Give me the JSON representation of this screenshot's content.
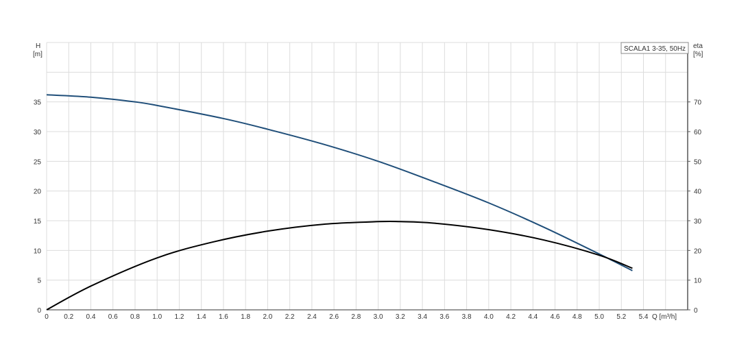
{
  "chart_data": {
    "type": "line",
    "title": "SCALA1 3-35, 50Hz",
    "xlabel": "Q [m³/h]",
    "ylabel_left": [
      "H",
      "[m]"
    ],
    "ylabel_right": [
      "eta",
      "[%]"
    ],
    "xlim": [
      0,
      5.8
    ],
    "ylim_left": [
      0,
      45
    ],
    "ylim_right": [
      0,
      90
    ],
    "grid": true,
    "x_ticks": [
      "0",
      "0.2",
      "0.4",
      "0.6",
      "0.8",
      "1.0",
      "1.2",
      "1.4",
      "1.6",
      "1.8",
      "2.0",
      "2.2",
      "2.4",
      "2.6",
      "2.8",
      "3.0",
      "3.2",
      "3.4",
      "3.6",
      "3.8",
      "4.0",
      "4.2",
      "4.4",
      "4.6",
      "4.8",
      "5.0",
      "5.2",
      "5.4"
    ],
    "y_ticks_left": [
      "0",
      "5",
      "10",
      "15",
      "20",
      "25",
      "30",
      "35"
    ],
    "y_ticks_right": [
      "0",
      "10",
      "20",
      "30",
      "40",
      "50",
      "60",
      "70"
    ],
    "series": [
      {
        "axis": "left",
        "color": "#1f4e79",
        "x": [
          0,
          0.4,
          0.8,
          1.0,
          1.6,
          2.0,
          2.5,
          3.0,
          3.5,
          4.0,
          4.5,
          5.0,
          5.3
        ],
        "values": [
          36.2,
          35.8,
          35.0,
          34.4,
          32.2,
          30.4,
          27.9,
          25.0,
          21.6,
          18.0,
          13.9,
          9.4,
          6.6
        ]
      },
      {
        "axis": "right",
        "color": "#000000",
        "x": [
          0,
          0.4,
          1.0,
          1.5,
          2.0,
          2.5,
          3.0,
          3.2,
          3.5,
          4.0,
          4.5,
          5.0,
          5.3
        ],
        "values": [
          0,
          8.0,
          17.5,
          22.8,
          26.5,
          28.8,
          29.7,
          29.7,
          29.2,
          27.0,
          23.5,
          18.4,
          14.0
        ]
      }
    ]
  }
}
